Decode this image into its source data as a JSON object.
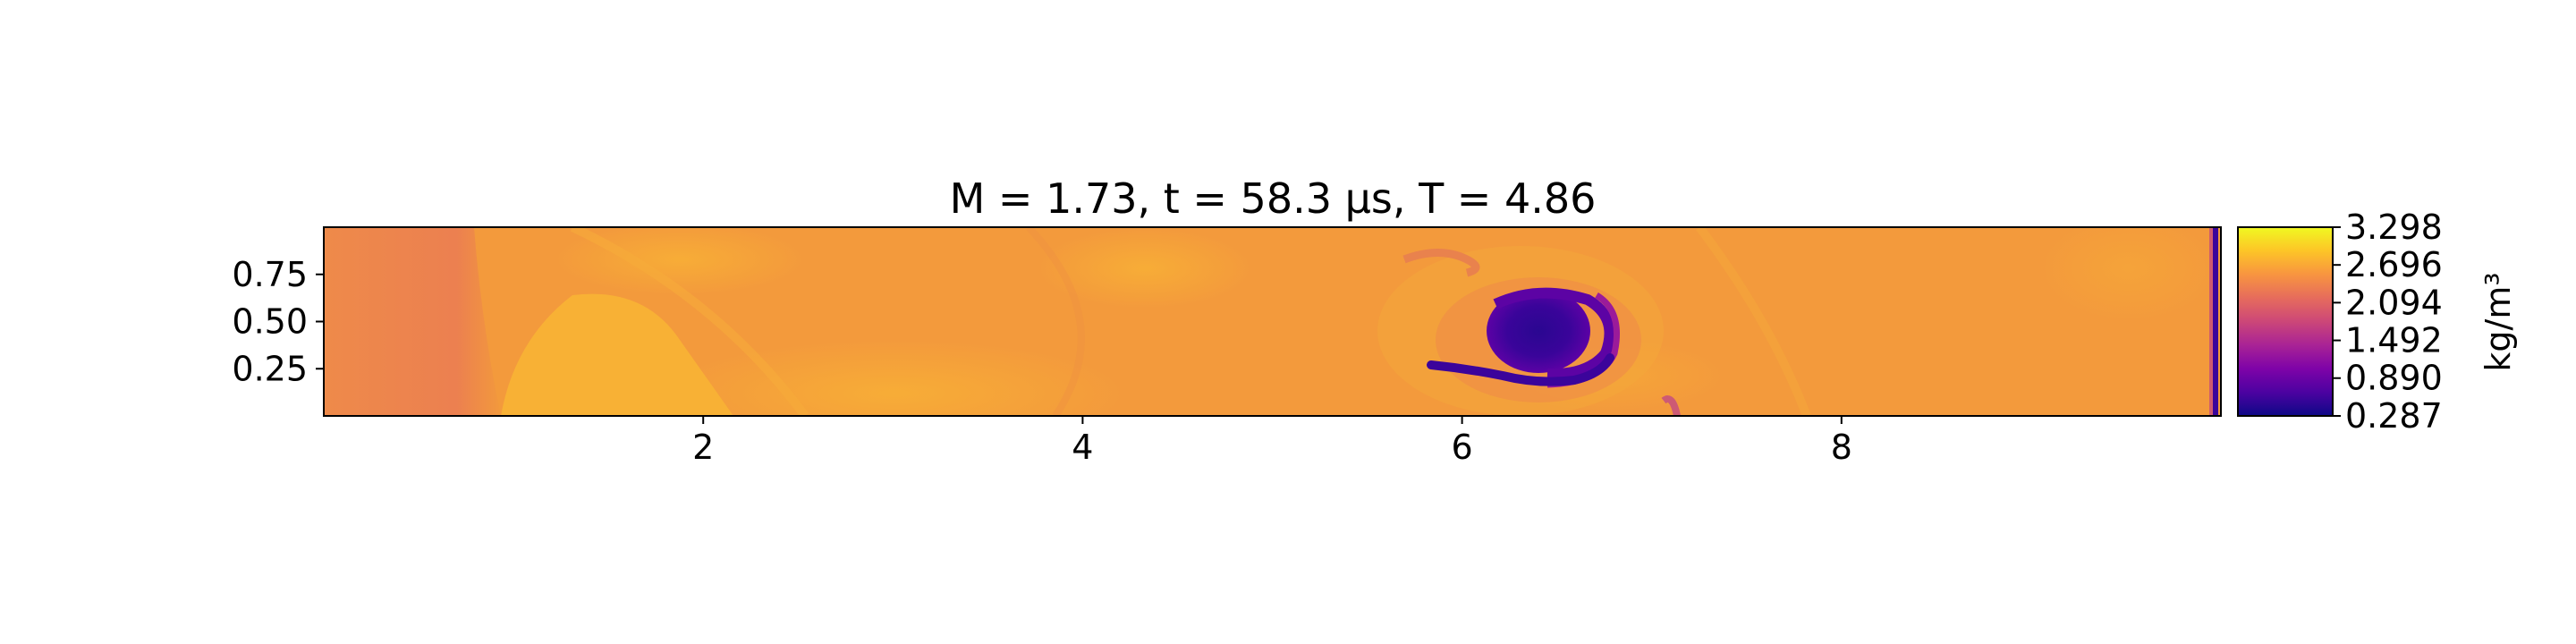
{
  "chart_data": {
    "type": "heatmap",
    "title": "M = 1.73, t = 58.3 μs, T = 4.86",
    "xlabel": "",
    "ylabel": "",
    "xlim": [
      0,
      10
    ],
    "ylim": [
      0,
      1
    ],
    "x_ticks": [
      "2",
      "4",
      "6",
      "8"
    ],
    "x_tick_values": [
      2,
      4,
      6,
      8
    ],
    "y_ticks": [
      "0.25",
      "0.50",
      "0.75"
    ],
    "y_tick_values": [
      0.25,
      0.5,
      0.75
    ],
    "colormap": "plasma",
    "colorbar": {
      "label": "kg/m³",
      "min": 0.287,
      "max": 3.298,
      "ticks": [
        "0.287",
        "0.890",
        "1.492",
        "2.094",
        "2.696",
        "3.298"
      ],
      "tick_values": [
        0.287,
        0.89,
        1.492,
        2.094,
        2.696,
        3.298
      ]
    },
    "colors": {
      "background_density": "#f39a3c",
      "low_density": "#2c0594",
      "high_density": "#f7d13a"
    }
  }
}
